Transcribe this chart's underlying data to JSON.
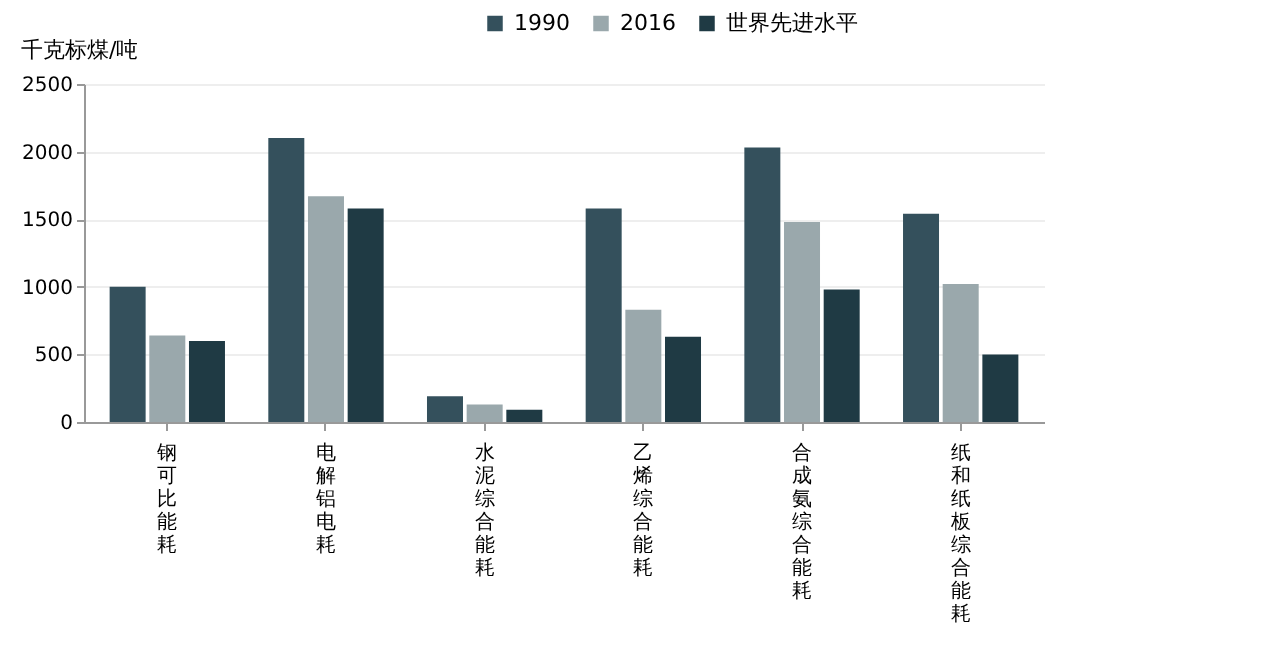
{
  "chart_data": {
    "type": "bar",
    "ylabel": "千克标煤/吨",
    "categories": [
      "钢可比能耗",
      "电解铝电耗",
      "水泥综合能耗",
      "乙烯综合能耗",
      "合成氨综合能耗",
      "纸和纸板综合能耗"
    ],
    "series": [
      {
        "name": "1990",
        "color": "#34505c",
        "values": [
          1000,
          2100,
          190,
          1580,
          2030,
          1540
        ]
      },
      {
        "name": "2016",
        "color": "#9aa8ac",
        "values": [
          640,
          1670,
          130,
          830,
          1480,
          1020
        ]
      },
      {
        "name": "世界先进水平",
        "color": "#1f3a44",
        "values": [
          600,
          1580,
          90,
          630,
          980,
          500
        ]
      }
    ],
    "ylim": [
      0,
      2500
    ],
    "yticks": [
      0,
      500,
      1000,
      1500,
      2000,
      2500
    ],
    "grid": "y",
    "legend": "top"
  }
}
